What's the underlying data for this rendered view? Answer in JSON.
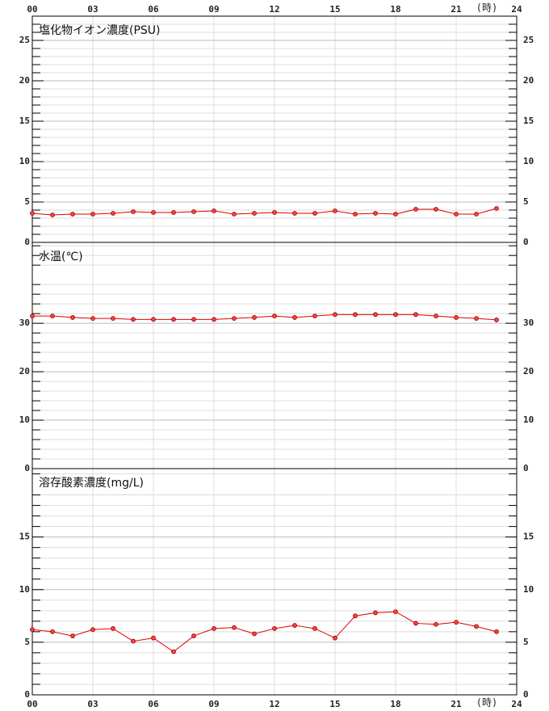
{
  "chart_data": [
    {
      "type": "line",
      "title": "塩化物イオン濃度(PSU)",
      "x_label": "(時)",
      "x": [
        0,
        1,
        2,
        3,
        4,
        5,
        6,
        7,
        8,
        9,
        10,
        11,
        12,
        13,
        14,
        15,
        16,
        17,
        18,
        19,
        20,
        21,
        22,
        23
      ],
      "series": [
        {
          "color": "#e00000",
          "values": [
            3.6,
            3.4,
            3.5,
            3.5,
            3.6,
            3.8,
            3.7,
            3.7,
            3.8,
            3.9,
            3.5,
            3.6,
            3.7,
            3.6,
            3.6,
            3.9,
            3.5,
            3.6,
            3.5,
            4.1,
            4.1,
            3.5,
            3.5,
            4.2
          ]
        }
      ],
      "xlim": [
        0,
        24
      ],
      "xticks": [
        {
          "value": 0,
          "label": "00"
        },
        {
          "value": 3,
          "label": "03"
        },
        {
          "value": 6,
          "label": "06"
        },
        {
          "value": 9,
          "label": "09"
        },
        12,
        15,
        18,
        21,
        24
      ],
      "ylim": [
        0,
        28
      ],
      "yticks": [
        0,
        5,
        10,
        15,
        20,
        25
      ],
      "grid": true
    },
    {
      "type": "line",
      "title": "水温(℃)",
      "x": [
        0,
        1,
        2,
        3,
        4,
        5,
        6,
        7,
        8,
        9,
        10,
        11,
        12,
        13,
        14,
        15,
        16,
        17,
        18,
        19,
        20,
        21,
        22,
        23
      ],
      "series": [
        {
          "color": "#e00000",
          "values": [
            31.5,
            31.5,
            31.2,
            31.0,
            31.0,
            30.8,
            30.8,
            30.8,
            30.8,
            30.8,
            31.0,
            31.2,
            31.5,
            31.2,
            31.5,
            31.8,
            31.8,
            31.8,
            31.8,
            31.8,
            31.5,
            31.2,
            31.0,
            30.7
          ]
        }
      ],
      "xlim": [
        0,
        24
      ],
      "xticks": [
        {
          "value": 0,
          "label": "00"
        },
        {
          "value": 3,
          "label": "03"
        },
        {
          "value": 6,
          "label": "06"
        },
        {
          "value": 9,
          "label": "09"
        },
        12,
        15,
        18,
        21,
        24
      ],
      "ylim": [
        0,
        46.7
      ],
      "yticks": [
        0,
        10,
        20,
        30
      ],
      "grid": true
    },
    {
      "type": "line",
      "title": "溶存酸素濃度(mg/L)",
      "x_label": "(時)",
      "x": [
        0,
        1,
        2,
        3,
        4,
        5,
        6,
        7,
        8,
        9,
        10,
        11,
        12,
        13,
        14,
        15,
        16,
        17,
        18,
        19,
        20,
        21,
        22,
        23
      ],
      "series": [
        {
          "color": "#e00000",
          "values": [
            6.2,
            6.0,
            5.6,
            6.2,
            6.3,
            5.1,
            5.4,
            4.1,
            5.6,
            6.3,
            6.4,
            5.8,
            6.3,
            6.6,
            6.3,
            5.4,
            7.5,
            7.8,
            7.9,
            6.8,
            6.7,
            6.9,
            6.5,
            6.0
          ]
        }
      ],
      "xlim": [
        0,
        24
      ],
      "xticks": [
        {
          "value": 0,
          "label": "00"
        },
        {
          "value": 3,
          "label": "03"
        },
        {
          "value": 6,
          "label": "06"
        },
        {
          "value": 9,
          "label": "09"
        },
        12,
        15,
        18,
        21,
        24
      ],
      "ylim": [
        0,
        21.5
      ],
      "yticks": [
        0,
        5,
        10,
        15
      ],
      "grid": true
    }
  ]
}
